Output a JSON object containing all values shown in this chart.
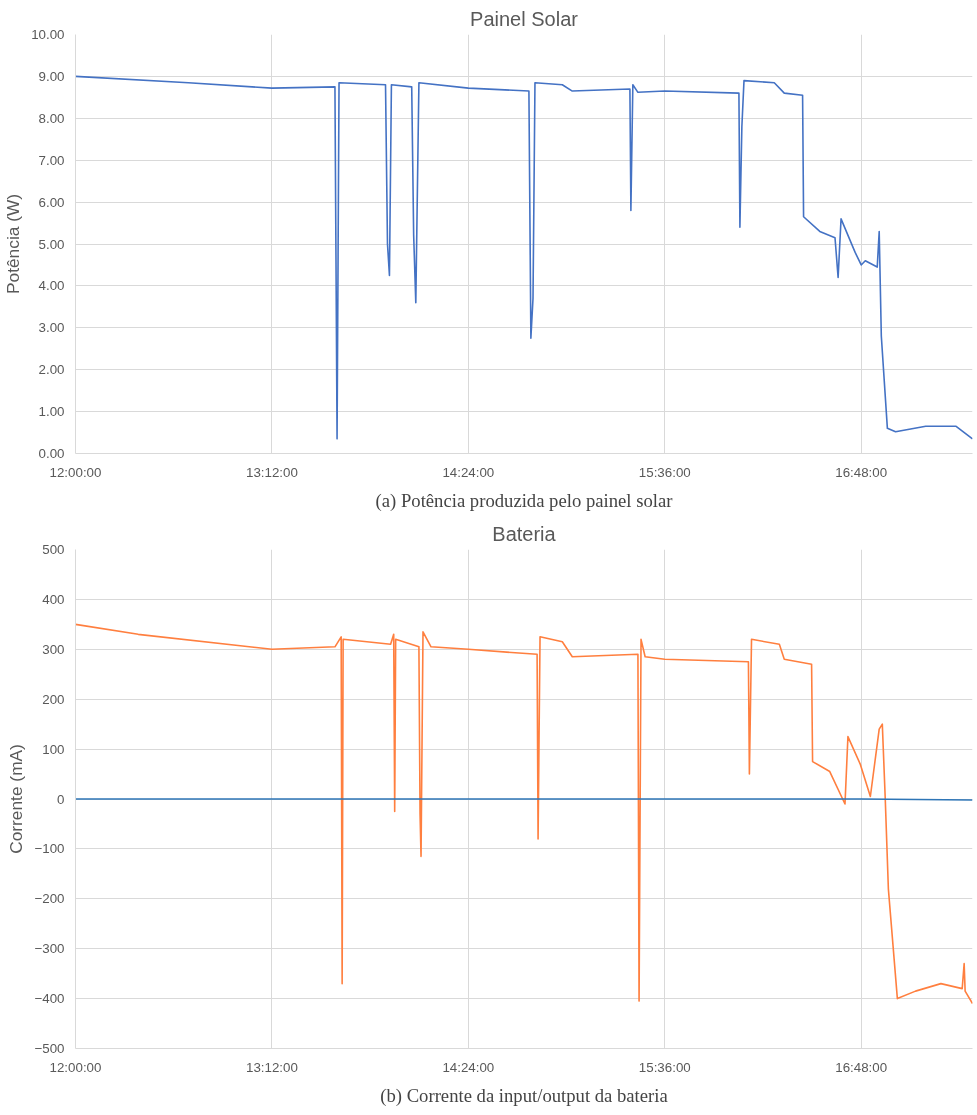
{
  "chart_data": [
    {
      "type": "line",
      "title": "Painel Solar",
      "ylabel": "Potência (W)",
      "annotations": [
        "(a) Potência produzida pelo painel solar"
      ],
      "xlim": [
        12,
        17.48
      ],
      "xticks": [
        {
          "value": 12,
          "label": "12:00:00"
        },
        {
          "value": 13.2,
          "label": "13:12:00"
        },
        {
          "value": 14.4,
          "label": "14:24:00"
        },
        {
          "value": 15.6,
          "label": "15:36:00"
        },
        {
          "value": 16.8,
          "label": "16:48:00"
        }
      ],
      "ylim": [
        0,
        10
      ],
      "yticks": [
        {
          "value": 0,
          "label": "0.00"
        },
        {
          "value": 1,
          "label": "1.00"
        },
        {
          "value": 2,
          "label": "2.00"
        },
        {
          "value": 3,
          "label": "3.00"
        },
        {
          "value": 4,
          "label": "4.00"
        },
        {
          "value": 5,
          "label": "5.00"
        },
        {
          "value": 6,
          "label": "6.00"
        },
        {
          "value": 7,
          "label": "7.00"
        },
        {
          "value": 8,
          "label": "8.00"
        },
        {
          "value": 9,
          "label": "9.00"
        },
        {
          "value": 10,
          "label": "10.00"
        }
      ],
      "grid": true,
      "series": [
        {
          "color": "#4472c4",
          "x": [
            12.0,
            12.69,
            13.2,
            13.585,
            13.598,
            13.61,
            13.894,
            13.906,
            13.918,
            13.93,
            14.054,
            14.066,
            14.079,
            14.098,
            14.4,
            14.77,
            14.782,
            14.795,
            14.807,
            14.974,
            15.035,
            15.387,
            15.393,
            15.405,
            15.436,
            15.6,
            16.053,
            16.059,
            16.071,
            16.084,
            16.269,
            16.33,
            16.442,
            16.448,
            16.547,
            16.64,
            16.659,
            16.677,
            16.763,
            16.8,
            16.825,
            16.898,
            16.91,
            16.923,
            16.96,
            17.01,
            17.194,
            17.38,
            17.48
          ],
          "values": [
            9.0,
            8.85,
            8.72,
            8.75,
            0.35,
            8.85,
            8.8,
            5.0,
            4.25,
            8.8,
            8.75,
            5.2,
            3.6,
            8.85,
            8.72,
            8.65,
            2.75,
            3.7,
            8.85,
            8.8,
            8.65,
            8.7,
            5.8,
            8.8,
            8.62,
            8.65,
            8.6,
            5.4,
            7.8,
            8.9,
            8.85,
            8.6,
            8.55,
            5.65,
            5.3,
            5.15,
            4.2,
            5.6,
            4.8,
            4.5,
            4.6,
            4.45,
            5.3,
            2.8,
            0.6,
            0.52,
            0.65,
            0.65,
            0.35
          ]
        }
      ]
    },
    {
      "type": "line",
      "title": "Bateria",
      "ylabel": "Corrente (mA)",
      "annotations": [
        "(b) Corrente da input/output da bateria"
      ],
      "xlim": [
        12,
        17.48
      ],
      "xticks": [
        {
          "value": 12,
          "label": "12:00:00"
        },
        {
          "value": 13.2,
          "label": "13:12:00"
        },
        {
          "value": 14.4,
          "label": "14:24:00"
        },
        {
          "value": 15.6,
          "label": "15:36:00"
        },
        {
          "value": 16.8,
          "label": "16:48:00"
        }
      ],
      "ylim": [
        -500,
        500
      ],
      "yticks": [
        -500,
        -400,
        -300,
        -200,
        -100,
        0,
        100,
        200,
        300,
        400,
        500
      ],
      "grid": true,
      "series": [
        {
          "color": "#ff7f3f",
          "x": [
            12.0,
            12.383,
            13.2,
            13.585,
            13.623,
            13.629,
            13.635,
            13.925,
            13.944,
            13.95,
            13.956,
            14.098,
            14.105,
            14.111,
            14.123,
            14.172,
            14.4,
            14.82,
            14.826,
            14.838,
            14.974,
            15.035,
            15.436,
            15.443,
            15.455,
            15.48,
            15.6,
            16.111,
            16.117,
            16.13,
            16.3,
            16.33,
            16.497,
            16.503,
            16.608,
            16.701,
            16.719,
            16.794,
            16.856,
            16.91,
            16.929,
            16.947,
            16.966,
            17.021,
            17.132,
            17.287,
            17.417,
            17.429,
            17.435,
            17.48
          ],
          "values": [
            350,
            330,
            300,
            305,
            325,
            -370,
            320,
            310,
            330,
            -25,
            320,
            305,
            -30,
            -115,
            335,
            305,
            300,
            290,
            -80,
            325,
            315,
            285,
            290,
            -405,
            320,
            285,
            280,
            275,
            50,
            320,
            310,
            280,
            270,
            75,
            55,
            -10,
            125,
            70,
            5,
            140,
            150,
            0,
            -180,
            -400,
            -385,
            -370,
            -380,
            -330,
            -385,
            -410
          ]
        },
        {
          "color": "#2e75b6",
          "x": [
            12.0,
            16.8,
            17.48
          ],
          "values": [
            0,
            0,
            -2
          ]
        }
      ]
    }
  ]
}
